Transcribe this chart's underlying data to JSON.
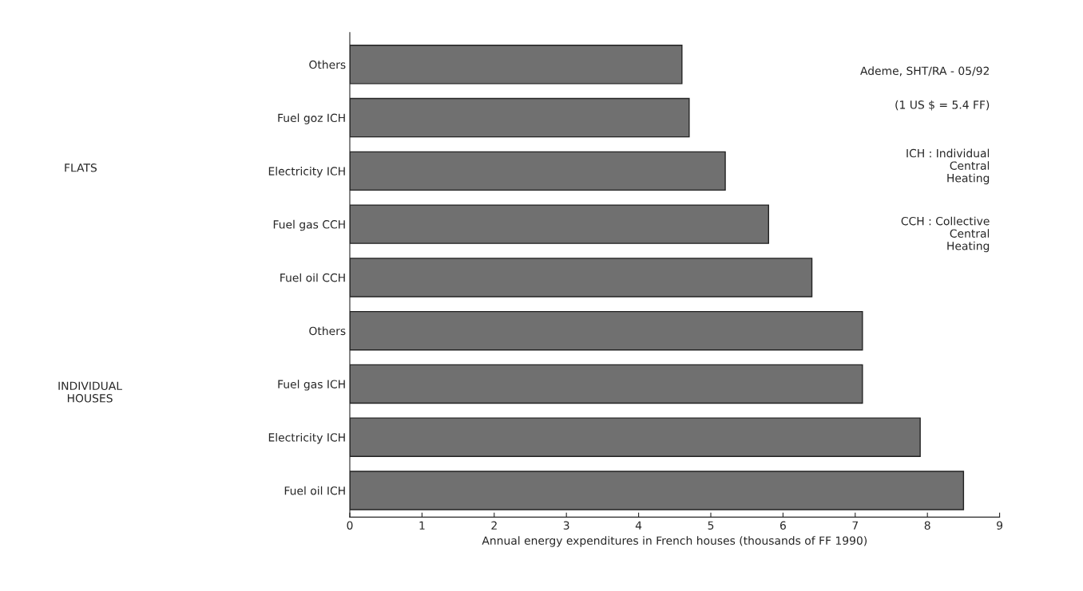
{
  "chart_data": {
    "type": "bar",
    "orientation": "horizontal",
    "categories": [
      "Others",
      "Fuel goz ICH",
      "Electricity ICH",
      "Fuel gas CCH",
      "Fuel oil CCH",
      "Others",
      "Fuel gas ICH",
      "Electricity ICH",
      "Fuel oil ICH"
    ],
    "values": [
      4.6,
      4.7,
      5.2,
      5.8,
      6.4,
      7.1,
      7.1,
      7.9,
      8.5
    ],
    "color": "#707070",
    "xlim": [
      0,
      9
    ],
    "xticks": [
      0,
      1,
      2,
      3,
      4,
      5,
      6,
      7,
      8,
      9
    ],
    "xlabel": "Annual energy expenditures in French houses (thousands of FF 1990)",
    "grid": false,
    "annotations": [
      "Ademe, SHT/RA - 05/92",
      "(1 US $ = 5.4 FF)",
      "ICH : Individual\nCentral\nHeating",
      "CCH : Collective\nCentral\nHeating",
      "FLATS",
      "INDIVIDUAL\nHOUSES"
    ]
  }
}
